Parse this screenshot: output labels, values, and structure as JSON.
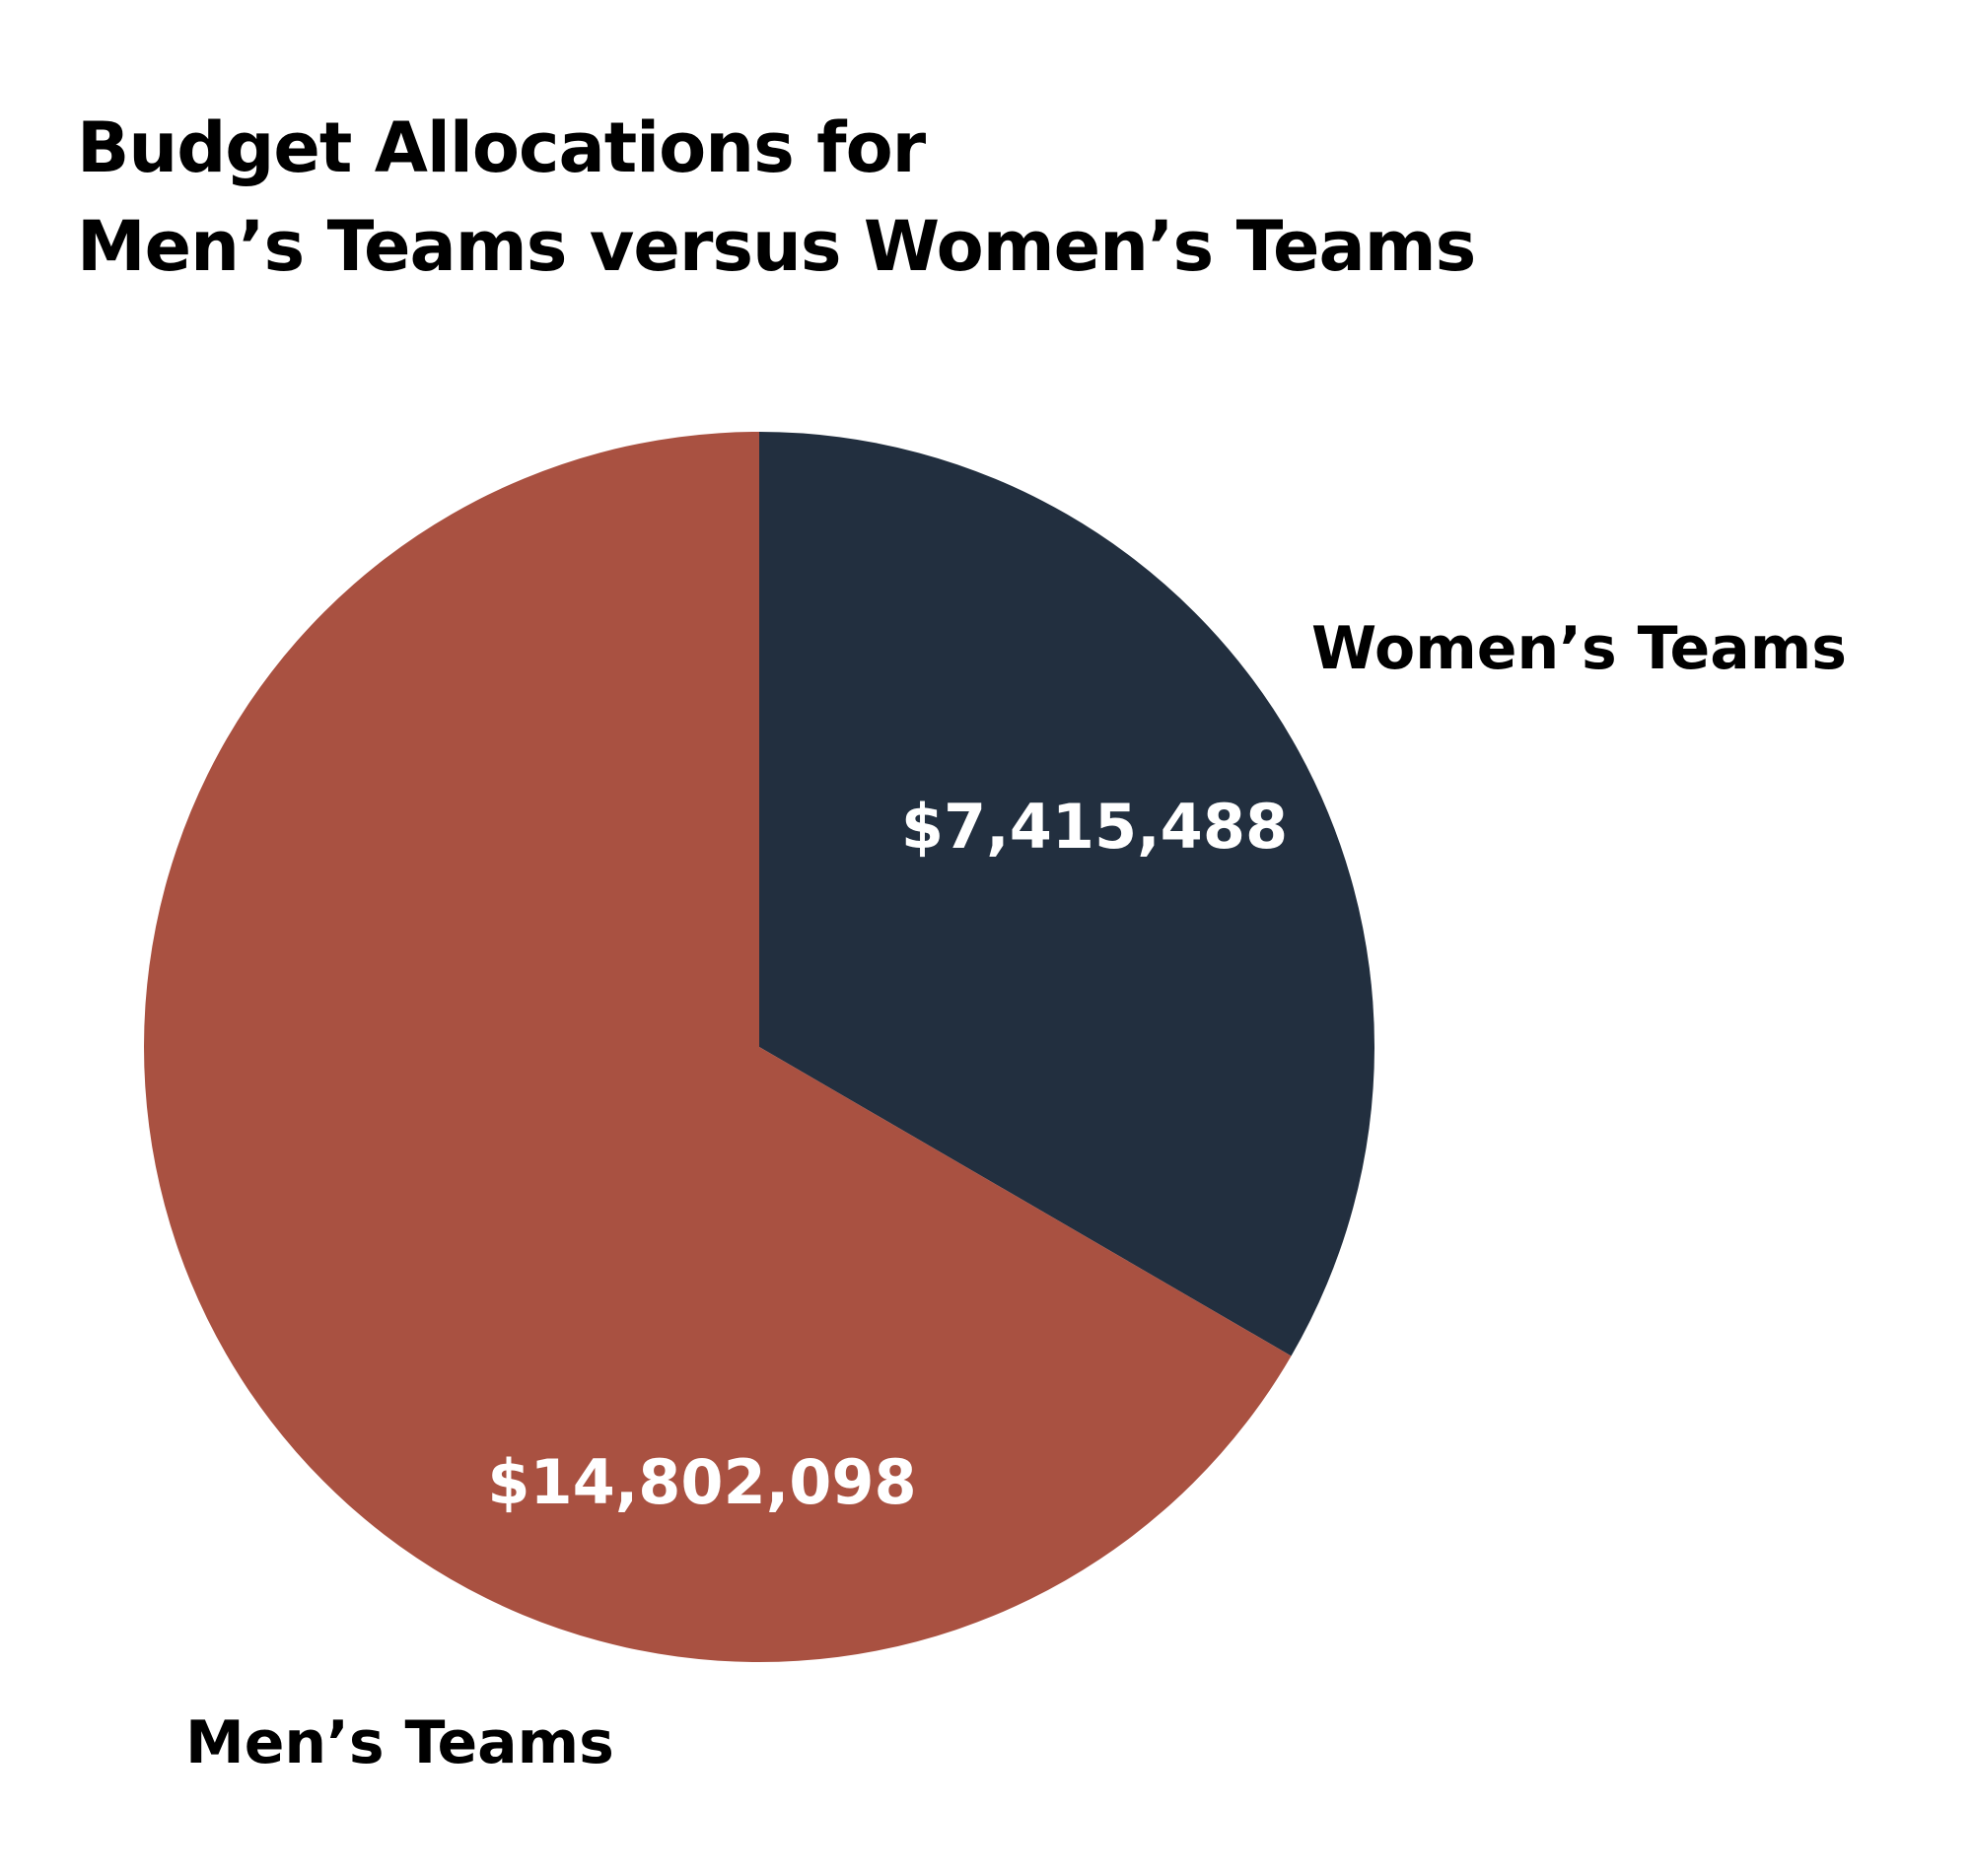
{
  "title": {
    "line1": "Budget Allocations for",
    "line2": "Men’s Teams versus Women’s Teams"
  },
  "chart_data": {
    "type": "pie",
    "title": "Budget Allocations for Men’s Teams versus Women’s Teams",
    "categories": [
      "Women’s Teams",
      "Men’s Teams"
    ],
    "values": [
      7415488,
      14802098
    ],
    "data_labels": [
      "$7,415,488",
      "$14,802,098"
    ],
    "colors": [
      "#222f3f",
      "#a95141"
    ],
    "start": "12 o'clock",
    "direction": "clockwise",
    "legend": "none"
  }
}
